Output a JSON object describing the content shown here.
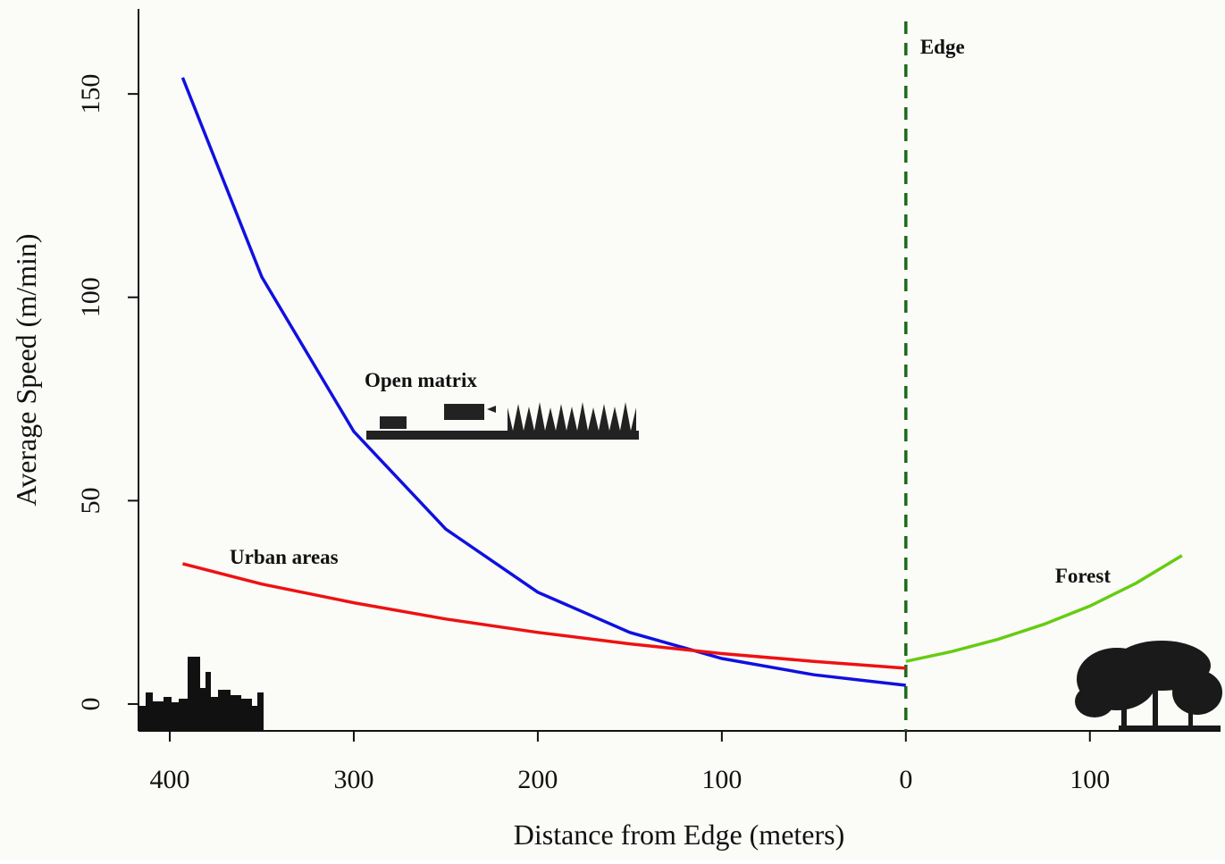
{
  "chart_data": {
    "type": "line",
    "x_label": "Distance from Edge (meters)",
    "y_label": "Average Speed (m/min)",
    "xlim": [
      -417,
      171
    ],
    "ylim": [
      -6.6,
      170.9
    ],
    "xticks": [
      {
        "value": -400,
        "label": "400"
      },
      {
        "value": -300,
        "label": "300"
      },
      {
        "value": -200,
        "label": "200"
      },
      {
        "value": -100,
        "label": "100"
      },
      0,
      100
    ],
    "yticks": [
      0,
      50,
      100,
      150
    ],
    "vline": {
      "x": 0,
      "label": "Edge",
      "color": "#1a6b1a"
    },
    "series": [
      {
        "name": "Open matrix",
        "color": "#1010e0",
        "x": [
          -393,
          -350,
          -300,
          -250,
          -200,
          -150,
          -100,
          -50,
          0
        ],
        "values": [
          154,
          105,
          67,
          43,
          27.5,
          17.6,
          11.2,
          7.2,
          4.6
        ]
      },
      {
        "name": "Urban areas",
        "color": "#ee1111",
        "x": [
          -393,
          -350,
          -300,
          -250,
          -200,
          -150,
          -100,
          -50,
          0
        ],
        "values": [
          34.5,
          29.5,
          24.9,
          20.9,
          17.6,
          14.8,
          12.4,
          10.5,
          8.8
        ]
      },
      {
        "name": "Forest",
        "color": "#66cc11",
        "x": [
          0,
          25,
          50,
          75,
          100,
          125,
          150
        ],
        "values": [
          10.5,
          12.9,
          15.9,
          19.6,
          24.1,
          29.7,
          36.5
        ]
      }
    ]
  }
}
